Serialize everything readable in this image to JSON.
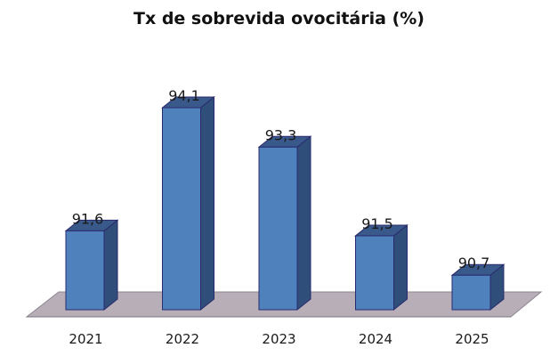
{
  "chart_data": {
    "type": "bar",
    "title": "Tx de sobrevida ovocitária (%)",
    "categories": [
      "2021",
      "2022",
      "2023",
      "2024",
      "2025"
    ],
    "values": [
      91.6,
      94.1,
      93.3,
      91.5,
      90.7
    ],
    "data_labels": [
      "91,6",
      "94,1",
      "93,3",
      "91,5",
      "90,7"
    ],
    "xlabel": "",
    "ylabel": "",
    "ylim": [
      90,
      94.5
    ],
    "grid": false,
    "legend": "none",
    "style": "3d-column",
    "colors": {
      "bar_front": "#4f81bd",
      "bar_side": "#2f4f7a",
      "bar_top": "#38598a",
      "bar_edge": "#2a2a6e",
      "floor": "#b7aeb8"
    }
  }
}
